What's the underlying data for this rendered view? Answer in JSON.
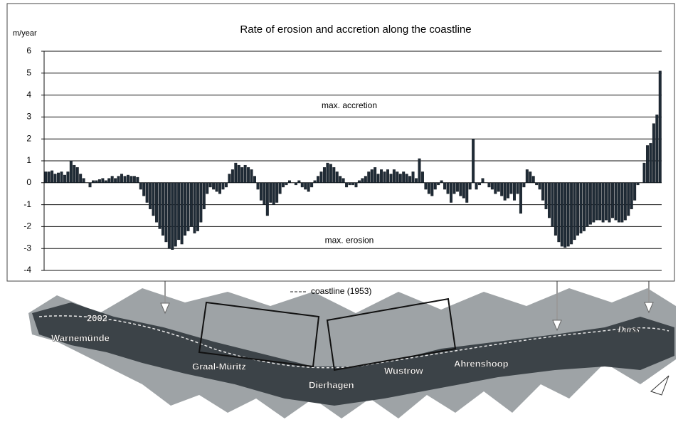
{
  "chart_data": {
    "type": "bar",
    "title": "Rate of erosion and accretion along the coastline",
    "y_label": "m/year",
    "annotations": [
      "max. accretion",
      "max. erosion"
    ],
    "legend_note": "coastline (1953)",
    "places": [
      "2002",
      "Warnemünde",
      "Graal-Müritz",
      "Dierhagen",
      "Wustrow",
      "Ahrenshoop",
      "Darss"
    ],
    "color": "#1f2b36",
    "grid": true,
    "ylim": [
      -4,
      6
    ],
    "yticks": [
      -4,
      -3,
      -2,
      -1,
      0,
      1,
      2,
      3,
      4,
      5,
      6
    ],
    "values": [
      0.5,
      0.5,
      0.55,
      0.4,
      0.45,
      0.5,
      0.35,
      0.5,
      1.0,
      0.8,
      0.7,
      0.4,
      0.2,
      0.0,
      -0.2,
      0.1,
      0.1,
      0.15,
      0.2,
      0.1,
      0.2,
      0.3,
      0.2,
      0.3,
      0.4,
      0.3,
      0.35,
      0.3,
      0.3,
      0.25,
      -0.3,
      -0.6,
      -0.9,
      -1.2,
      -1.5,
      -1.8,
      -2.1,
      -2.4,
      -2.7,
      -3.0,
      -3.05,
      -2.9,
      -2.6,
      -2.8,
      -2.4,
      -2.2,
      -2.0,
      -2.3,
      -2.2,
      -1.8,
      -1.2,
      -0.5,
      -0.2,
      -0.3,
      -0.4,
      -0.5,
      -0.3,
      -0.2,
      0.4,
      0.6,
      0.9,
      0.8,
      0.7,
      0.8,
      0.7,
      0.6,
      0.3,
      -0.3,
      -0.8,
      -1.0,
      -1.5,
      -0.9,
      -1.0,
      -0.9,
      -0.5,
      -0.2,
      -0.1,
      0.1,
      0.0,
      -0.1,
      0.1,
      -0.2,
      -0.3,
      -0.4,
      -0.2,
      0.1,
      0.3,
      0.5,
      0.7,
      0.9,
      0.85,
      0.7,
      0.5,
      0.3,
      0.2,
      -0.2,
      -0.1,
      -0.1,
      -0.2,
      0.1,
      0.2,
      0.3,
      0.5,
      0.6,
      0.7,
      0.4,
      0.6,
      0.5,
      0.6,
      0.4,
      0.6,
      0.5,
      0.4,
      0.5,
      0.4,
      0.3,
      0.5,
      0.2,
      1.1,
      0.5,
      -0.3,
      -0.5,
      -0.6,
      -0.3,
      -0.1,
      0.1,
      -0.3,
      -0.5,
      -0.9,
      -0.5,
      -0.4,
      -0.6,
      -0.7,
      -0.9,
      -0.3,
      2.0,
      -0.3,
      -0.1,
      0.2,
      0.0,
      -0.2,
      -0.3,
      -0.5,
      -0.4,
      -0.6,
      -0.8,
      -0.7,
      -0.5,
      -0.8,
      -0.5,
      -1.4,
      -0.2,
      0.6,
      0.5,
      0.3,
      -0.1,
      -0.3,
      -0.8,
      -1.2,
      -1.6,
      -2.0,
      -2.4,
      -2.7,
      -2.9,
      -2.95,
      -2.9,
      -2.8,
      -2.6,
      -2.4,
      -2.3,
      -2.2,
      -2.0,
      -1.9,
      -1.8,
      -1.7,
      -1.7,
      -1.8,
      -1.7,
      -1.8,
      -1.6,
      -1.7,
      -1.8,
      -1.8,
      -1.7,
      -1.5,
      -1.2,
      -0.8,
      -0.1,
      0.0,
      0.9,
      1.7,
      1.8,
      2.7,
      3.1,
      5.1
    ]
  }
}
